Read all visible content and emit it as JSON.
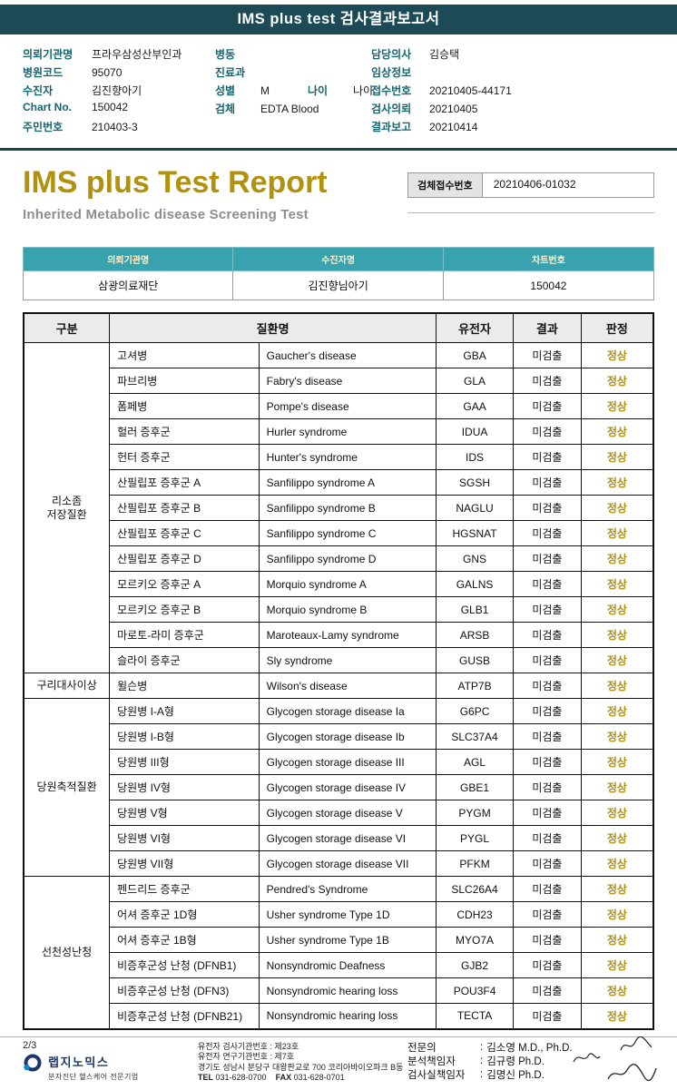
{
  "top_bar": {
    "title": "IMS plus test 검사결과보고서"
  },
  "patient_info": {
    "columns": [
      {
        "rows": [
          [
            {
              "label": "의뢰기관명",
              "value": "프라우삼성산부인과"
            }
          ],
          [
            {
              "label": "병원코드",
              "value": "95070"
            }
          ],
          [
            {
              "label": "수진자",
              "value": "김진향아기"
            }
          ],
          [
            {
              "label": "Chart No.",
              "value": "150042"
            }
          ],
          [
            {
              "label": "주민번호",
              "value": "210403-3"
            }
          ]
        ]
      },
      {
        "rows": [
          [
            {
              "label": "병동",
              "value": ""
            }
          ],
          [
            {
              "label": "진료과",
              "value": ""
            }
          ],
          [
            {
              "label": "성별",
              "value": "M"
            },
            {
              "label": "나이",
              "value": "나이"
            }
          ],
          [
            {
              "label": "검체",
              "value": "EDTA Blood"
            }
          ]
        ]
      },
      {
        "rows": [
          [
            {
              "label": "담당의사",
              "value": "김승택"
            }
          ],
          [
            {
              "label": "임상정보",
              "value": ""
            }
          ],
          [
            {
              "label": "접수번호",
              "value": "20210405-44171"
            }
          ],
          [
            {
              "label": "검사의뢰",
              "value": "20210405"
            }
          ],
          [
            {
              "label": "결과보고",
              "value": "20210414"
            }
          ]
        ]
      }
    ]
  },
  "report": {
    "title": "IMS plus Test Report",
    "subtitle": "Inherited Metabolic disease Screening Test",
    "specimen_label": "검체접수번호",
    "specimen_value": "20210406-01032"
  },
  "info_table": {
    "headers": [
      "의뢰기관명",
      "수진자명",
      "차트번호"
    ],
    "values": [
      "삼광의료재단",
      "김진향님아기",
      "150042"
    ]
  },
  "result_table": {
    "headers": [
      "구분",
      "질환명",
      "유전자",
      "결과",
      "판정"
    ],
    "groups": [
      {
        "category": "리소좀\n저장질환",
        "rows": [
          {
            "kr": "고셔병",
            "en": "Gaucher's disease",
            "gene": "GBA",
            "result": "미검출",
            "judge": "정상"
          },
          {
            "kr": "파브리병",
            "en": "Fabry's disease",
            "gene": "GLA",
            "result": "미검출",
            "judge": "정상"
          },
          {
            "kr": "폼페병",
            "en": "Pompe's disease",
            "gene": "GAA",
            "result": "미검출",
            "judge": "정상"
          },
          {
            "kr": "헐러 증후군",
            "en": "Hurler syndrome",
            "gene": "IDUA",
            "result": "미검출",
            "judge": "정상"
          },
          {
            "kr": "헌터 증후군",
            "en": "Hunter's syndrome",
            "gene": "IDS",
            "result": "미검출",
            "judge": "정상"
          },
          {
            "kr": "산필립포 증후군 A",
            "en": "Sanfilippo syndrome A",
            "gene": "SGSH",
            "result": "미검출",
            "judge": "정상"
          },
          {
            "kr": "산필립포 증후군 B",
            "en": "Sanfilippo syndrome B",
            "gene": "NAGLU",
            "result": "미검출",
            "judge": "정상"
          },
          {
            "kr": "산필립포 증후군 C",
            "en": "Sanfilippo syndrome C",
            "gene": "HGSNAT",
            "result": "미검출",
            "judge": "정상"
          },
          {
            "kr": "산필립포 증후군 D",
            "en": "Sanfilippo syndrome D",
            "gene": "GNS",
            "result": "미검출",
            "judge": "정상"
          },
          {
            "kr": "모르키오 증후군 A",
            "en": "Morquio syndrome A",
            "gene": "GALNS",
            "result": "미검출",
            "judge": "정상"
          },
          {
            "kr": "모르키오 증후군 B",
            "en": "Morquio syndrome B",
            "gene": "GLB1",
            "result": "미검출",
            "judge": "정상"
          },
          {
            "kr": "마로토-라미 증후군",
            "en": "Maroteaux-Lamy syndrome",
            "gene": "ARSB",
            "result": "미검출",
            "judge": "정상"
          },
          {
            "kr": "슬라이 증후군",
            "en": "Sly syndrome",
            "gene": "GUSB",
            "result": "미검출",
            "judge": "정상"
          }
        ]
      },
      {
        "category": "구리대사이상",
        "rows": [
          {
            "kr": "윌슨병",
            "en": "Wilson's disease",
            "gene": "ATP7B",
            "result": "미검출",
            "judge": "정상"
          }
        ]
      },
      {
        "category": "당원축적질환",
        "rows": [
          {
            "kr": "당원병 I-A형",
            "en": "Glycogen storage disease Ia",
            "gene": "G6PC",
            "result": "미검출",
            "judge": "정상"
          },
          {
            "kr": "당원병 I-B형",
            "en": "Glycogen storage disease Ib",
            "gene": "SLC37A4",
            "result": "미검출",
            "judge": "정상"
          },
          {
            "kr": "당원병 III형",
            "en": "Glycogen storage disease III",
            "gene": "AGL",
            "result": "미검출",
            "judge": "정상"
          },
          {
            "kr": "당원병 IV형",
            "en": "Glycogen storage disease IV",
            "gene": "GBE1",
            "result": "미검출",
            "judge": "정상"
          },
          {
            "kr": "당원병 V형",
            "en": "Glycogen storage disease V",
            "gene": "PYGM",
            "result": "미검출",
            "judge": "정상"
          },
          {
            "kr": "당원병 VI형",
            "en": "Glycogen storage disease VI",
            "gene": "PYGL",
            "result": "미검출",
            "judge": "정상"
          },
          {
            "kr": "당원병 VII형",
            "en": "Glycogen storage disease VII",
            "gene": "PFKM",
            "result": "미검출",
            "judge": "정상"
          }
        ]
      },
      {
        "category": "선천성난청",
        "rows": [
          {
            "kr": "펜드리드 증후군",
            "en": "Pendred's Syndrome",
            "gene": "SLC26A4",
            "result": "미검출",
            "judge": "정상"
          },
          {
            "kr": "어셔 증후군 1D형",
            "en": "Usher syndrome Type 1D",
            "gene": "CDH23",
            "result": "미검출",
            "judge": "정상"
          },
          {
            "kr": "어셔 증후군 1B형",
            "en": "Usher syndrome Type 1B",
            "gene": "MYO7A",
            "result": "미검출",
            "judge": "정상"
          },
          {
            "kr": "비증후군성 난청 (DFNB1)",
            "en": "Nonsyndromic Deafness",
            "gene": "GJB2",
            "result": "미검출",
            "judge": "정상"
          },
          {
            "kr": "비증후군성 난청 (DFN3)",
            "en": "Nonsyndromic hearing loss",
            "gene": "POU3F4",
            "result": "미검출",
            "judge": "정상"
          },
          {
            "kr": "비증후군성 난청 (DFNB21)",
            "en": "Nonsyndromic hearing loss",
            "gene": "TECTA",
            "result": "미검출",
            "judge": "정상"
          }
        ]
      }
    ]
  },
  "footer": {
    "page": "2/3",
    "logo": {
      "company": "랩지노믹스",
      "tagline": "분자진단 헬스케어 전문기업"
    },
    "center_lines": [
      "유전자 검사기관번호 : 제23호",
      "유전자 연구기관번호 : 제7호",
      "경기도 성남시 분당구 대왕판교로 700 코리아바이오파크 B동"
    ],
    "tel_label": "TEL",
    "tel": "031-628-0700",
    "fax_label": "FAX",
    "fax": "031-628-0701",
    "signers": [
      {
        "role": "전문의",
        "colon": ":",
        "name": "김소영 M.D., Ph.D."
      },
      {
        "role": "분석책임자",
        "colon": ":",
        "name": "김규령 Ph.D."
      },
      {
        "role": "검사실책임자",
        "colon": ":",
        "name": "김명신 Ph.D."
      }
    ]
  },
  "colors": {
    "bar": "#1c4a57",
    "label_teal": "#156671",
    "gold": "#b2910d",
    "table_header_teal": "#38a2ae"
  }
}
